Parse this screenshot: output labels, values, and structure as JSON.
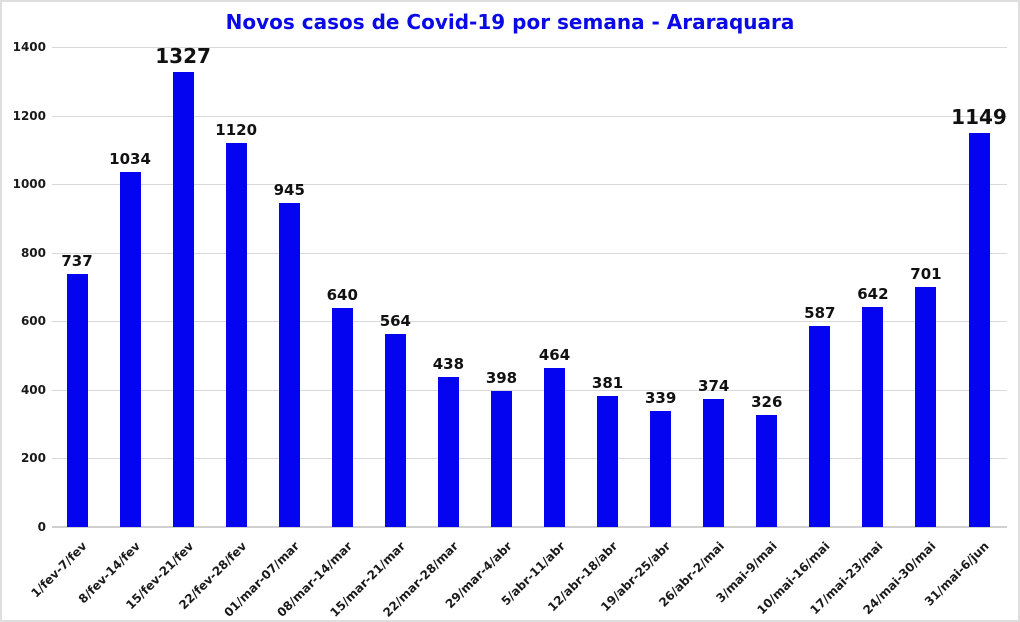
{
  "frame": {
    "background": "#ffffff",
    "border_color": "#dedede"
  },
  "chart_data": {
    "type": "bar",
    "title": "Novos casos de Covid-19 por semana - Araraquara",
    "title_color": "#0a0ae6",
    "bar_color": "#0404f0",
    "value_label_color": "#111111",
    "grid_color": "#d9d9d9",
    "baseline_color": "#d0d0d0",
    "grid": true,
    "legend": false,
    "xlabel": "",
    "ylabel": "",
    "ylim": [
      0,
      1400
    ],
    "yticks": [
      0,
      200,
      400,
      600,
      800,
      1000,
      1200,
      1400
    ],
    "categories": [
      "1/fev-7/fev",
      "8/fev-14/fev",
      "15/fev-21/fev",
      "22/fev-28/fev",
      "01/mar-07/mar",
      "08/mar-14/mar",
      "15/mar-21/mar",
      "22/mar-28/mar",
      "29/mar-4/abr",
      "5/abr-11/abr",
      "12/abr-18/abr",
      "19/abr-25/abr",
      "26/abr-2/mai",
      "3/mai-9/mai",
      "10/mai-16/mai",
      "17/mai-23/mai",
      "24/mai-30/mai",
      "31/mai-6/jun"
    ],
    "values": [
      737,
      1034,
      1327,
      1120,
      945,
      640,
      564,
      438,
      398,
      464,
      381,
      339,
      374,
      326,
      587,
      642,
      701,
      1149
    ],
    "emphasized_indices": [
      2,
      17
    ]
  }
}
